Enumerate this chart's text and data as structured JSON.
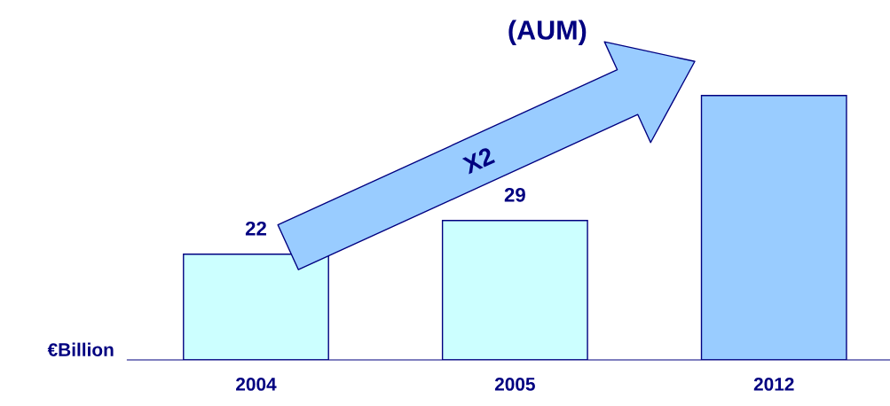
{
  "chart_data": {
    "type": "bar",
    "title": "(AUM)",
    "ylabel": "€Billion",
    "categories": [
      "2004",
      "2005",
      "2012"
    ],
    "values": [
      22,
      29,
      55
    ],
    "value_labels": [
      "22",
      "29",
      null
    ],
    "colors": [
      "#ccffff",
      "#ccffff",
      "#99ccff"
    ],
    "annotations": [
      "X2"
    ],
    "grid": false,
    "legend": false
  }
}
